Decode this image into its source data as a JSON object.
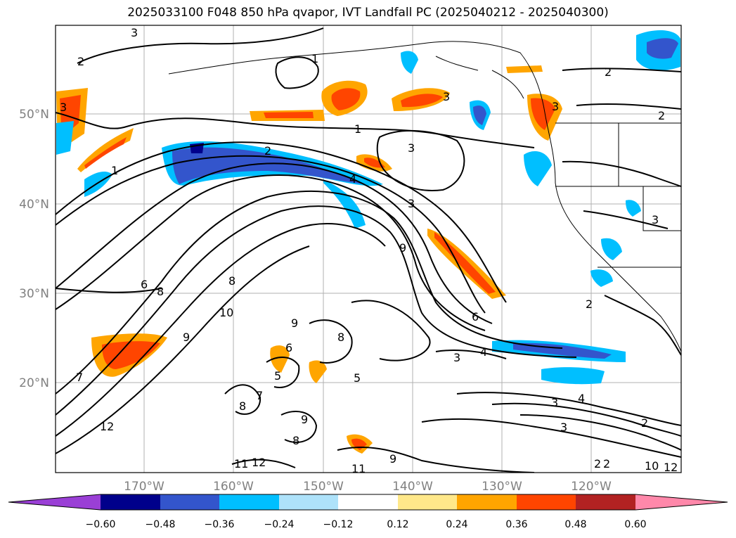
{
  "title": "2025033100 F048 850 hPa qvapor, IVT Landfall PC (2025040212 - 2025040300)",
  "map": {
    "lat_labels": [
      "50°N",
      "40°N",
      "30°N",
      "20°N"
    ],
    "lon_labels": [
      "170°W",
      "160°W",
      "150°W",
      "140°W",
      "130°W",
      "120°W"
    ],
    "contour_labels": [
      "3",
      "2",
      "1",
      "3",
      "2",
      "3",
      "3",
      "1",
      "2",
      "2",
      "1",
      "4",
      "3",
      "9",
      "6",
      "8",
      "8",
      "10",
      "9",
      "9",
      "8",
      "6",
      "7",
      "6",
      "5",
      "5",
      "3",
      "4",
      "3",
      "2",
      "4",
      "3",
      "3",
      "2",
      "12",
      "11",
      "12",
      "11",
      "9",
      "10",
      "12",
      "8",
      "8",
      "9",
      "7",
      "2",
      "2",
      "3"
    ]
  },
  "colorbar": {
    "colors": [
      "#9a3fd6",
      "#00008b",
      "#3355cc",
      "#00bfff",
      "#aee2fa",
      "#ffffff",
      "#ffe88a",
      "#ffa500",
      "#ff4500",
      "#b22222",
      "#ff88aa"
    ],
    "tick_labels": [
      "−0.60",
      "−0.48",
      "−0.36",
      "−0.24",
      "−0.12",
      "0.12",
      "0.24",
      "0.36",
      "0.48",
      "0.60"
    ]
  }
}
